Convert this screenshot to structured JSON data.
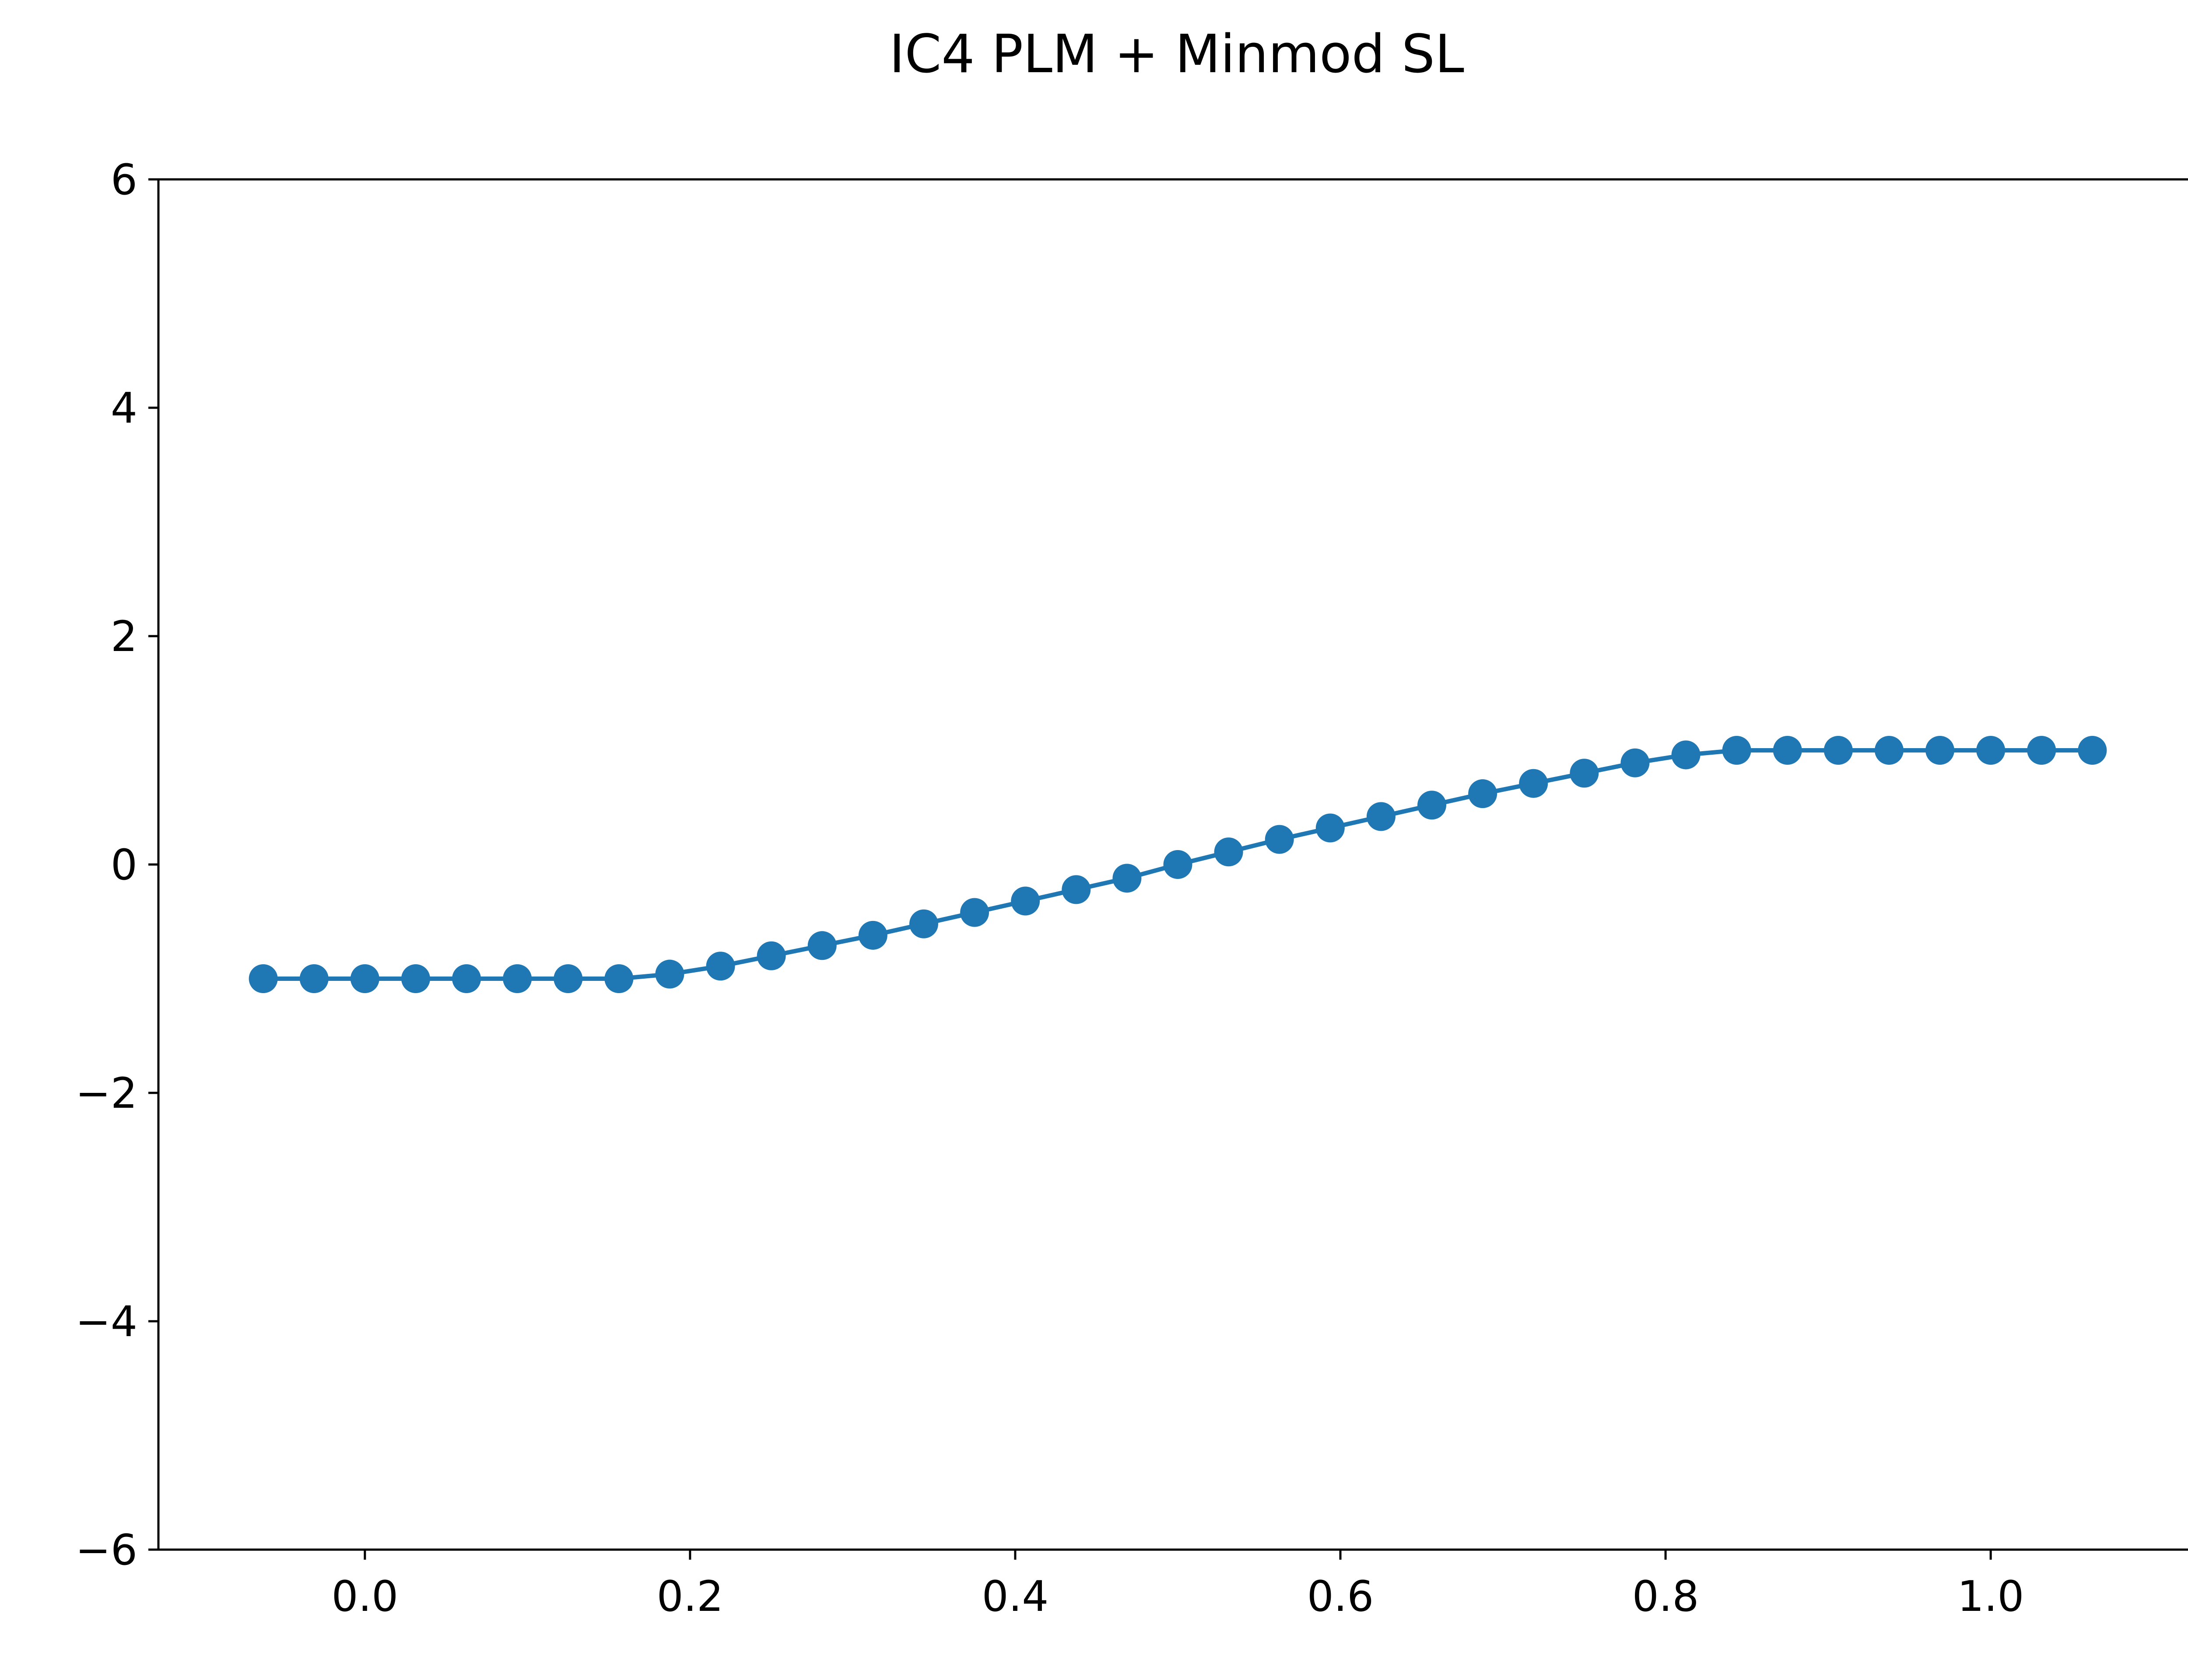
{
  "chart_data": {
    "type": "line",
    "title": "IC4 PLM + Minmod SL",
    "xlabel": "",
    "ylabel": "",
    "xlim": [
      -0.127,
      1.127
    ],
    "ylim": [
      -6,
      6
    ],
    "x_ticks": [
      0.0,
      0.2,
      0.4,
      0.6,
      0.8,
      1.0
    ],
    "x_tick_labels": [
      "0.0",
      "0.2",
      "0.4",
      "0.6",
      "0.8",
      "1.0"
    ],
    "y_ticks": [
      -6,
      -4,
      -2,
      0,
      2,
      4,
      6
    ],
    "y_tick_labels": [
      "−6",
      "−4",
      "−2",
      "0",
      "2",
      "4",
      "6"
    ],
    "grid": false,
    "legend": "none",
    "series_color": "#1f77b4",
    "series": [
      {
        "marker": "circle",
        "x": [
          -0.0625,
          -0.03125,
          0.0,
          0.03125,
          0.0625,
          0.09375,
          0.125,
          0.15625,
          0.1875,
          0.21875,
          0.25,
          0.28125,
          0.3125,
          0.34375,
          0.375,
          0.40625,
          0.4375,
          0.46875,
          0.5,
          0.53125,
          0.5625,
          0.59375,
          0.625,
          0.65625,
          0.6875,
          0.71875,
          0.75,
          0.78125,
          0.8125,
          0.84375,
          0.875,
          0.90625,
          0.9375,
          0.96875,
          1.0,
          1.03125,
          1.0625
        ],
        "y": [
          -1.0,
          -1.0,
          -1.0,
          -1.0,
          -1.0,
          -1.0,
          -1.0,
          -1.0,
          -0.96,
          -0.89,
          -0.8,
          -0.71,
          -0.62,
          -0.52,
          -0.42,
          -0.32,
          -0.22,
          -0.12,
          0.0,
          0.11,
          0.22,
          0.32,
          0.42,
          0.52,
          0.62,
          0.71,
          0.8,
          0.89,
          0.96,
          1.0,
          1.0,
          1.0,
          1.0,
          1.0,
          1.0,
          1.0,
          1.0
        ]
      }
    ]
  }
}
